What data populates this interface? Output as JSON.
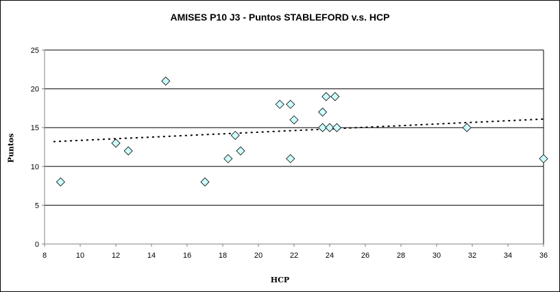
{
  "chart_data": {
    "type": "scatter",
    "title": "AMISES P10 J3 - Puntos STABLEFORD v.s. HCP",
    "xlabel": "HCP",
    "ylabel": "Puntos",
    "xlim": [
      8,
      36
    ],
    "ylim": [
      0,
      25
    ],
    "x_ticks": [
      8,
      10,
      12,
      14,
      16,
      18,
      20,
      22,
      24,
      26,
      28,
      30,
      32,
      34,
      36
    ],
    "y_ticks": [
      0,
      5,
      10,
      15,
      20,
      25
    ],
    "grid": "horizontal",
    "marker": "diamond",
    "marker_color": "#ccffff",
    "trendline": {
      "type": "linear",
      "style": "dotted",
      "from": [
        8.5,
        13.2
      ],
      "to": [
        36,
        16.1
      ]
    },
    "points": [
      {
        "x": 8.9,
        "y": 8
      },
      {
        "x": 12.0,
        "y": 13
      },
      {
        "x": 12.7,
        "y": 12
      },
      {
        "x": 14.8,
        "y": 21
      },
      {
        "x": 17.0,
        "y": 8
      },
      {
        "x": 18.3,
        "y": 11
      },
      {
        "x": 18.7,
        "y": 14
      },
      {
        "x": 19.0,
        "y": 12
      },
      {
        "x": 21.2,
        "y": 18
      },
      {
        "x": 21.8,
        "y": 18
      },
      {
        "x": 21.8,
        "y": 11
      },
      {
        "x": 22.0,
        "y": 16
      },
      {
        "x": 23.6,
        "y": 17
      },
      {
        "x": 23.6,
        "y": 15
      },
      {
        "x": 23.8,
        "y": 19
      },
      {
        "x": 24.0,
        "y": 15
      },
      {
        "x": 24.3,
        "y": 19
      },
      {
        "x": 24.4,
        "y": 15
      },
      {
        "x": 31.7,
        "y": 15
      },
      {
        "x": 36.0,
        "y": 11
      }
    ]
  }
}
